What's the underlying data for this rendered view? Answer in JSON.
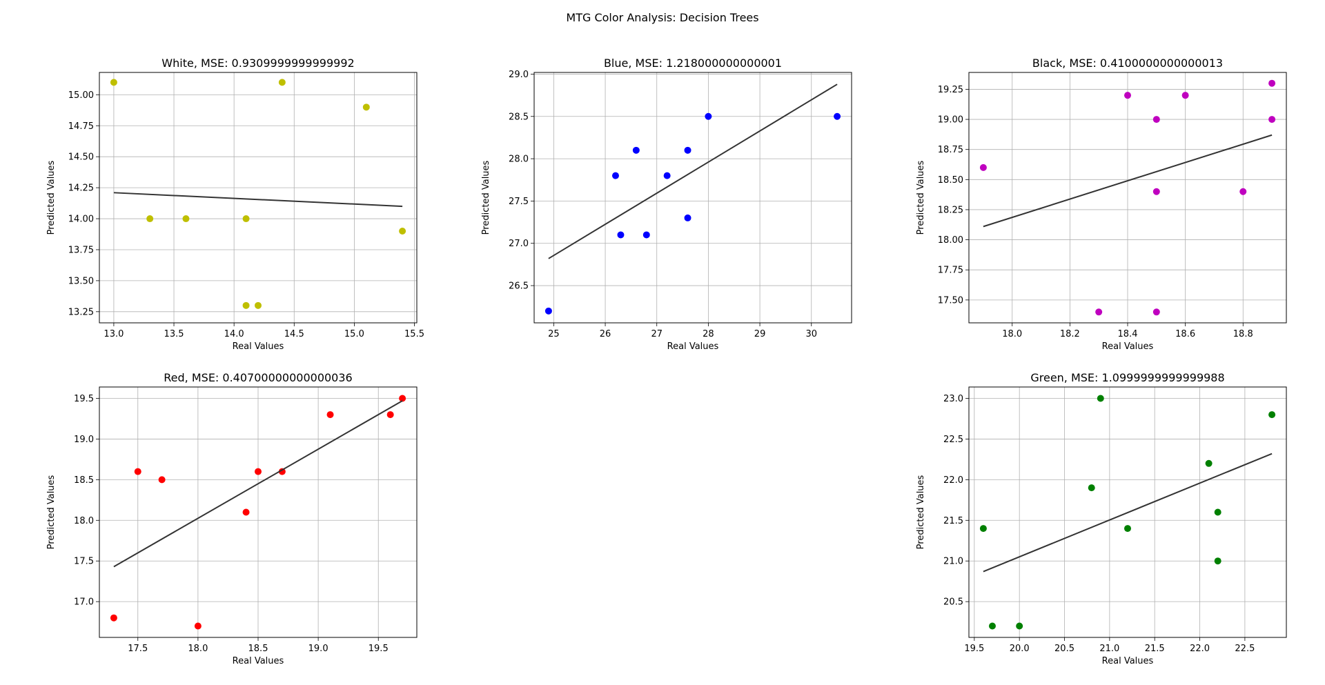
{
  "figure": {
    "title": "MTG Color Analysis: Decision Trees"
  },
  "chart_data": [
    {
      "type": "scatter",
      "title": "White, MSE: 0.9309999999999992",
      "xlabel": "Real Values",
      "ylabel": "Predicted Values",
      "color": "#bfbf00",
      "line_color": "#333333",
      "grid": true,
      "xlim": [
        12.88,
        15.52
      ],
      "ylim": [
        13.16,
        15.18
      ],
      "xticks": [
        "13.0",
        "13.5",
        "14.0",
        "14.5",
        "15.0",
        "15.5"
      ],
      "yticks": [
        "13.25",
        "13.50",
        "13.75",
        "14.00",
        "14.25",
        "14.50",
        "14.75",
        "15.00"
      ],
      "points": [
        [
          13.0,
          15.1
        ],
        [
          14.4,
          15.1
        ],
        [
          15.1,
          14.9
        ],
        [
          13.3,
          14.0
        ],
        [
          13.6,
          14.0
        ],
        [
          14.1,
          14.0
        ],
        [
          15.4,
          13.9
        ],
        [
          14.1,
          13.3
        ],
        [
          14.2,
          13.3
        ]
      ],
      "fit": [
        [
          13.0,
          14.21
        ],
        [
          15.4,
          14.1
        ]
      ]
    },
    {
      "type": "scatter",
      "title": "Blue, MSE: 1.218000000000001",
      "xlabel": "Real Values",
      "ylabel": "Predicted Values",
      "color": "#0000ff",
      "line_color": "#333333",
      "grid": true,
      "xlim": [
        24.62,
        30.78
      ],
      "ylim": [
        26.06,
        29.02
      ],
      "xticks": [
        "25",
        "26",
        "27",
        "28",
        "29",
        "30"
      ],
      "yticks": [
        "26.5",
        "27.0",
        "27.5",
        "28.0",
        "28.5",
        "29.0"
      ],
      "points": [
        [
          24.9,
          26.2
        ],
        [
          26.2,
          27.8
        ],
        [
          26.3,
          27.1
        ],
        [
          26.6,
          28.1
        ],
        [
          26.8,
          27.1
        ],
        [
          27.2,
          27.8
        ],
        [
          27.6,
          28.1
        ],
        [
          27.6,
          27.3
        ],
        [
          28.0,
          28.5
        ],
        [
          30.5,
          28.5
        ]
      ],
      "fit": [
        [
          24.9,
          26.82
        ],
        [
          30.5,
          28.88
        ]
      ]
    },
    {
      "type": "scatter",
      "title": "Black, MSE: 0.4100000000000013",
      "xlabel": "Real Values",
      "ylabel": "Predicted Values",
      "color": "#bf00bf",
      "line_color": "#333333",
      "grid": true,
      "xlim": [
        17.85,
        18.95
      ],
      "ylim": [
        17.31,
        19.39
      ],
      "xticks": [
        "18.0",
        "18.2",
        "18.4",
        "18.6",
        "18.8"
      ],
      "yticks": [
        "17.50",
        "17.75",
        "18.00",
        "18.25",
        "18.50",
        "18.75",
        "19.00",
        "19.25"
      ],
      "points": [
        [
          17.9,
          18.6
        ],
        [
          18.3,
          17.4
        ],
        [
          18.4,
          19.2
        ],
        [
          18.5,
          19.0
        ],
        [
          18.5,
          18.4
        ],
        [
          18.5,
          17.4
        ],
        [
          18.6,
          19.2
        ],
        [
          18.8,
          18.4
        ],
        [
          18.9,
          19.3
        ],
        [
          18.9,
          19.0
        ]
      ],
      "fit": [
        [
          17.9,
          18.11
        ],
        [
          18.9,
          18.87
        ]
      ]
    },
    {
      "type": "scatter",
      "title": "Red, MSE: 0.40700000000000036",
      "xlabel": "Real Values",
      "ylabel": "Predicted Values",
      "color": "#ff0000",
      "line_color": "#333333",
      "grid": true,
      "xlim": [
        17.18,
        19.82
      ],
      "ylim": [
        16.56,
        19.64
      ],
      "xticks": [
        "17.5",
        "18.0",
        "18.5",
        "19.0",
        "19.5"
      ],
      "yticks": [
        "17.0",
        "17.5",
        "18.0",
        "18.5",
        "19.0",
        "19.5"
      ],
      "points": [
        [
          17.3,
          16.8
        ],
        [
          17.5,
          18.6
        ],
        [
          17.7,
          18.5
        ],
        [
          18.0,
          16.7
        ],
        [
          18.4,
          18.1
        ],
        [
          18.5,
          18.6
        ],
        [
          18.7,
          18.6
        ],
        [
          19.1,
          19.3
        ],
        [
          19.6,
          19.3
        ],
        [
          19.7,
          19.5
        ]
      ],
      "fit": [
        [
          17.3,
          17.43
        ],
        [
          19.7,
          19.47
        ]
      ]
    },
    {
      "type": "scatter",
      "title": "Green, MSE: 1.0999999999999988",
      "xlabel": "Real Values",
      "ylabel": "Predicted Values",
      "color": "#008000",
      "line_color": "#333333",
      "grid": true,
      "xlim": [
        19.44,
        22.96
      ],
      "ylim": [
        20.06,
        23.14
      ],
      "xticks": [
        "19.5",
        "20.0",
        "20.5",
        "21.0",
        "21.5",
        "22.0",
        "22.5"
      ],
      "yticks": [
        "20.5",
        "21.0",
        "21.5",
        "22.0",
        "22.5",
        "23.0"
      ],
      "points": [
        [
          19.6,
          21.4
        ],
        [
          19.7,
          20.2
        ],
        [
          20.0,
          20.2
        ],
        [
          20.8,
          21.9
        ],
        [
          20.9,
          23.0
        ],
        [
          21.2,
          21.4
        ],
        [
          22.1,
          22.2
        ],
        [
          22.2,
          21.6
        ],
        [
          22.2,
          21.0
        ],
        [
          22.8,
          22.8
        ]
      ],
      "fit": [
        [
          19.6,
          20.87
        ],
        [
          22.8,
          22.32
        ]
      ]
    }
  ]
}
